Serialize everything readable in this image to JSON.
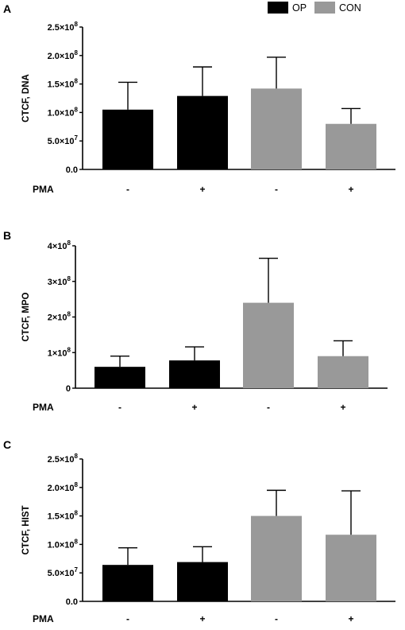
{
  "legend": {
    "items": [
      {
        "label": "OP",
        "color": "#000000"
      },
      {
        "label": "CON",
        "color": "#999999"
      }
    ],
    "placement": "top-right"
  },
  "condition_row": {
    "label": "PMA",
    "values": [
      "-",
      "+",
      "-",
      "+"
    ]
  },
  "chart_data": [
    {
      "panel": "A",
      "type": "bar",
      "ylabel": "CTCF, DNA",
      "ylim": [
        0,
        250000000
      ],
      "yticks": [
        {
          "value": 0,
          "label": "0.0"
        },
        {
          "value": 50000000,
          "label": "5.0×10",
          "exp": "7"
        },
        {
          "value": 100000000,
          "label": "1.0×10",
          "exp": "8"
        },
        {
          "value": 150000000,
          "label": "1.5×10",
          "exp": "8"
        },
        {
          "value": 200000000,
          "label": "2.0×10",
          "exp": "8"
        },
        {
          "value": 250000000,
          "label": "2.5×10",
          "exp": "8"
        }
      ],
      "bars": [
        {
          "group": "OP",
          "pma": "-",
          "value": 105000000,
          "error": 48000000
        },
        {
          "group": "OP",
          "pma": "+",
          "value": 129000000,
          "error": 51000000
        },
        {
          "group": "CON",
          "pma": "-",
          "value": 142000000,
          "error": 55000000
        },
        {
          "group": "CON",
          "pma": "+",
          "value": 80000000,
          "error": 27000000
        }
      ]
    },
    {
      "panel": "B",
      "type": "bar",
      "ylabel": "CTCF, MPO",
      "ylim": [
        0,
        400000000
      ],
      "yticks": [
        {
          "value": 0,
          "label": "0"
        },
        {
          "value": 100000000,
          "label": "1×10",
          "exp": "8"
        },
        {
          "value": 200000000,
          "label": "2×10",
          "exp": "8"
        },
        {
          "value": 300000000,
          "label": "3×10",
          "exp": "8"
        },
        {
          "value": 400000000,
          "label": "4×10",
          "exp": "8"
        }
      ],
      "bars": [
        {
          "group": "OP",
          "pma": "-",
          "value": 60000000,
          "error": 30000000
        },
        {
          "group": "OP",
          "pma": "+",
          "value": 78000000,
          "error": 38000000
        },
        {
          "group": "CON",
          "pma": "-",
          "value": 240000000,
          "error": 125000000
        },
        {
          "group": "CON",
          "pma": "+",
          "value": 90000000,
          "error": 43000000
        }
      ]
    },
    {
      "panel": "C",
      "type": "bar",
      "ylabel": "CTCF, HIST",
      "ylim": [
        0,
        250000000
      ],
      "yticks": [
        {
          "value": 0,
          "label": "0.0"
        },
        {
          "value": 50000000,
          "label": "5.0×10",
          "exp": "7"
        },
        {
          "value": 100000000,
          "label": "1.0×10",
          "exp": "8"
        },
        {
          "value": 150000000,
          "label": "1.5×10",
          "exp": "8"
        },
        {
          "value": 200000000,
          "label": "2.0×10",
          "exp": "8"
        },
        {
          "value": 250000000,
          "label": "2.5×10",
          "exp": "8"
        }
      ],
      "bars": [
        {
          "group": "OP",
          "pma": "-",
          "value": 64000000,
          "error": 30000000
        },
        {
          "group": "OP",
          "pma": "+",
          "value": 69000000,
          "error": 27000000
        },
        {
          "group": "CON",
          "pma": "-",
          "value": 150000000,
          "error": 45000000
        },
        {
          "group": "CON",
          "pma": "+",
          "value": 117000000,
          "error": 77000000
        }
      ]
    }
  ]
}
